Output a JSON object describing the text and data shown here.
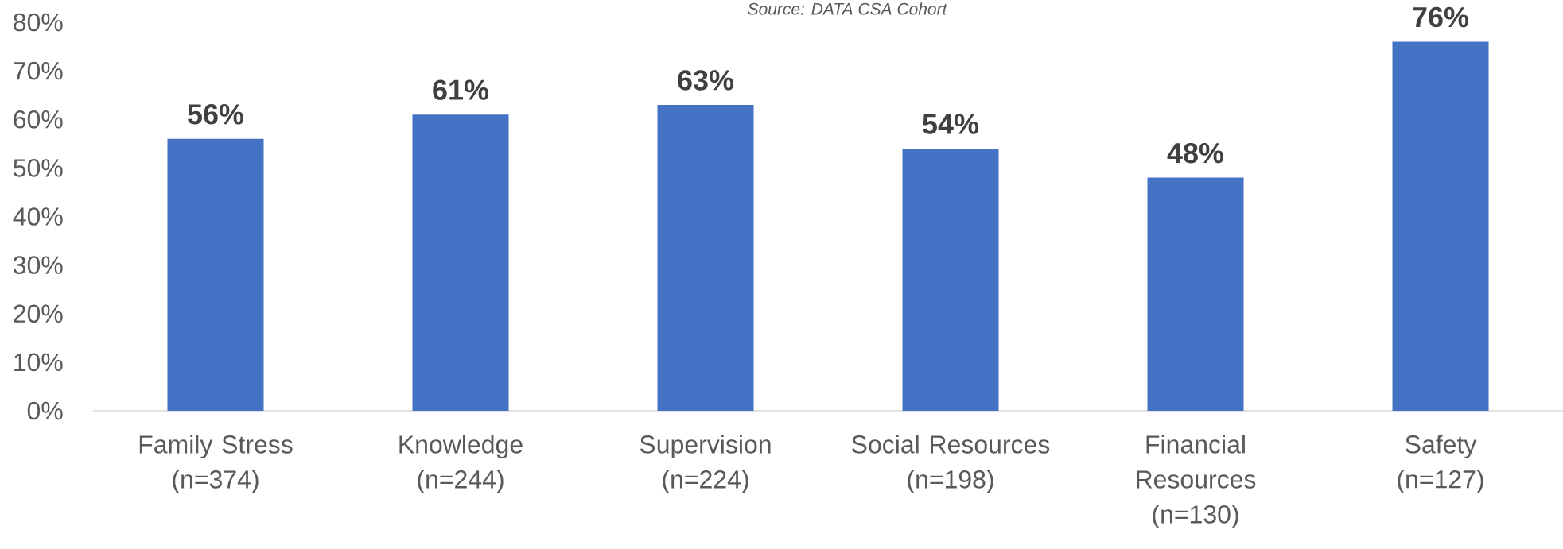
{
  "chart_data": {
    "type": "bar",
    "annotations": [
      "Source: DATA CSA Cohort"
    ],
    "categories": [
      "Family Stress\n(n=374)",
      "Knowledge\n(n=244)",
      "Supervision\n(n=224)",
      "Social Resources\n(n=198)",
      "Financial Resources\n(n=130)",
      "Safety\n(n=127)"
    ],
    "values": [
      56,
      61,
      63,
      54,
      48,
      76
    ],
    "color": "#4472c4",
    "value_labels": [
      "56%",
      "61%",
      "63%",
      "54%",
      "48%",
      "76%"
    ],
    "ylim": [
      0,
      80
    ],
    "yticks": [
      {
        "value": 0,
        "label": "0%"
      },
      {
        "value": 10,
        "label": "10%"
      },
      {
        "value": 20,
        "label": "20%"
      },
      {
        "value": 30,
        "label": "30%"
      },
      {
        "value": 40,
        "label": "40%"
      },
      {
        "value": 50,
        "label": "50%"
      },
      {
        "value": 60,
        "label": "60%"
      },
      {
        "value": 70,
        "label": "70%"
      },
      {
        "value": 80,
        "label": "80%"
      }
    ]
  }
}
